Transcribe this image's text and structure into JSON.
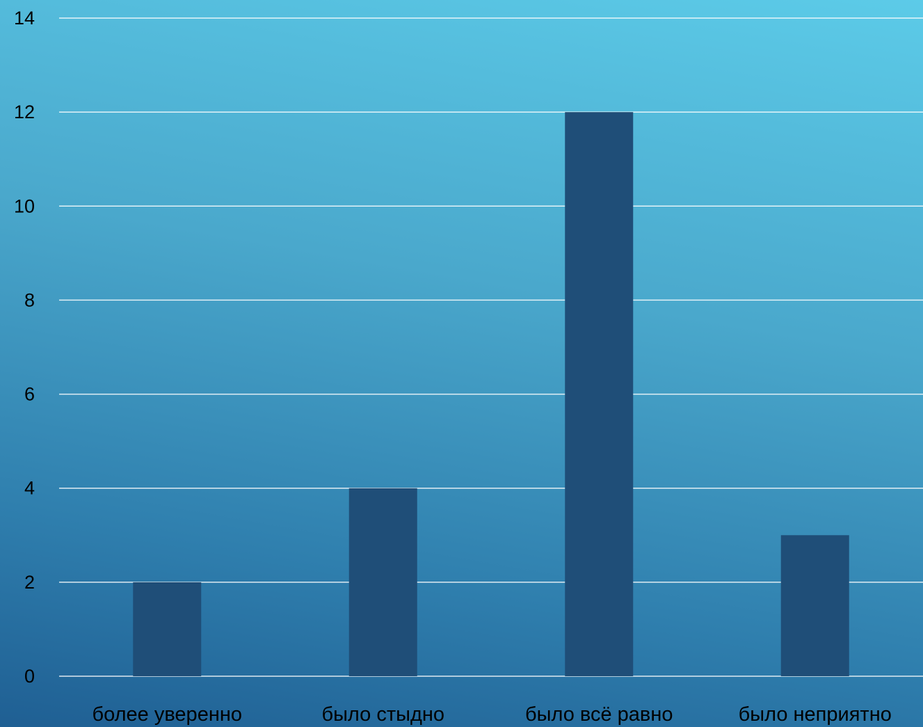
{
  "chart_data": {
    "type": "bar",
    "categories": [
      "более уверенно",
      "было стыдно",
      "было всё равно",
      "было неприятно"
    ],
    "values": [
      2,
      4,
      12,
      3
    ],
    "ylim": [
      0,
      14
    ],
    "yticks": [
      0,
      2,
      4,
      6,
      8,
      10,
      12,
      14
    ],
    "grid": true,
    "colors": {
      "bar": "#1f4e78",
      "grid": "#ffffff",
      "text": "#000000"
    }
  }
}
